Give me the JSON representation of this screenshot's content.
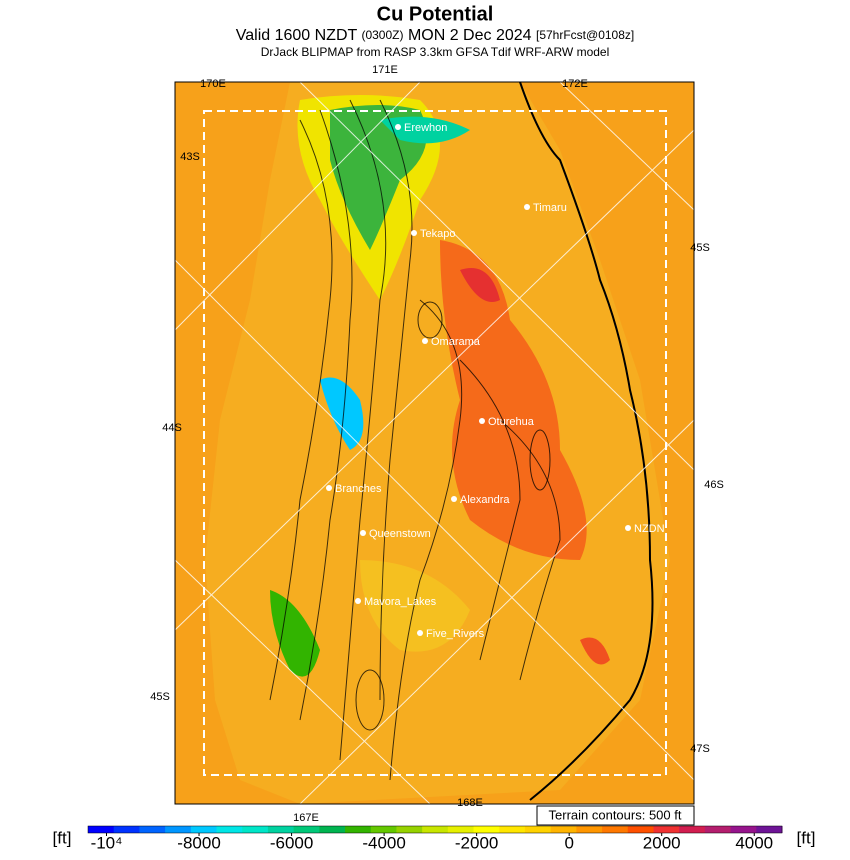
{
  "header": {
    "title": "Cu Potential",
    "subtitle_parts": [
      "Valid 1600 NZDT",
      "(0300Z)",
      "MON 2 Dec 2024",
      "[57hrFcst@0108z]"
    ],
    "model_line": "DrJack BLIPMAP from RASP 3.3km GFSA Tdif WRF-ARW model"
  },
  "grid_labels": [
    "170E",
    "171E",
    "172E",
    "43S",
    "45S",
    "44S",
    "46S",
    "45S",
    "47S",
    "167E",
    "168E"
  ],
  "places": [
    "Erewhon",
    "Timaru",
    "Tekapo",
    "Omarama",
    "Oturehua",
    "Branches",
    "Alexandra",
    "NZDN",
    "Queenstown",
    "Mavora_Lakes",
    "Five_Rivers"
  ],
  "terrain_note": "Terrain contours: 500 ft",
  "colorbar": {
    "units": "[ft]",
    "lim": [
      -10400,
      4600
    ],
    "ticks": [
      {
        "value": -10000,
        "label": "-10⁴"
      },
      -8000,
      -6000,
      -4000,
      -2000,
      0,
      2000,
      4000
    ],
    "colors": [
      "#0000ff",
      "#0032ff",
      "#0064ff",
      "#0096ff",
      "#00c8ff",
      "#00e6e6",
      "#00e6c8",
      "#00d2a0",
      "#00c878",
      "#00b450",
      "#32b400",
      "#64c800",
      "#96d200",
      "#c8e600",
      "#e6f000",
      "#ffff00",
      "#ffe600",
      "#ffd200",
      "#ffb400",
      "#ff9600",
      "#ff7800",
      "#ff5000",
      "#f03232",
      "#d21e50",
      "#b41e6e",
      "#96148c",
      "#6e1496"
    ]
  }
}
